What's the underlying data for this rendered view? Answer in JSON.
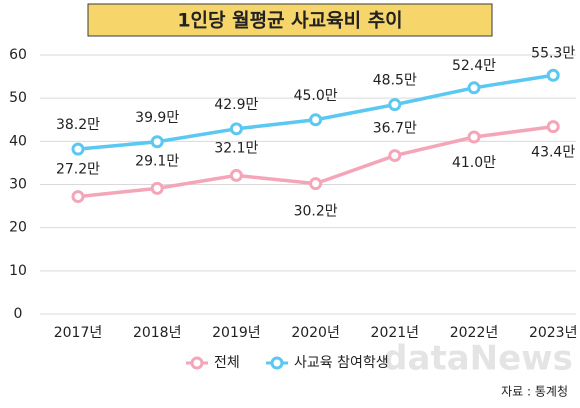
{
  "chart_data": {
    "type": "line",
    "title": "1인당 월평균 사교육비 추이",
    "categories": [
      "2017년",
      "2018년",
      "2019년",
      "2020년",
      "2021년",
      "2022년",
      "2023년"
    ],
    "series": [
      {
        "name": "전체",
        "color": "#f4a6b8",
        "values": [
          27.2,
          29.1,
          32.1,
          30.2,
          36.7,
          41.0,
          43.4
        ],
        "value_labels": [
          "27.2만",
          "29.1만",
          "32.1만",
          "30.2만",
          "36.7만",
          "41.0만",
          "43.4만"
        ]
      },
      {
        "name": "사교육 참여학생",
        "color": "#5ac8f2",
        "values": [
          38.2,
          39.9,
          42.9,
          45.0,
          48.5,
          52.4,
          55.3
        ],
        "value_labels": [
          "38.2만",
          "39.9만",
          "42.9만",
          "45.0만",
          "48.5만",
          "52.4만",
          "55.3만"
        ]
      }
    ],
    "ylim": [
      0,
      60
    ],
    "yticks": [
      0,
      10,
      20,
      30,
      40,
      50,
      60
    ],
    "grid": true,
    "source": "자료 : 통계청",
    "watermark": "dataNews"
  }
}
